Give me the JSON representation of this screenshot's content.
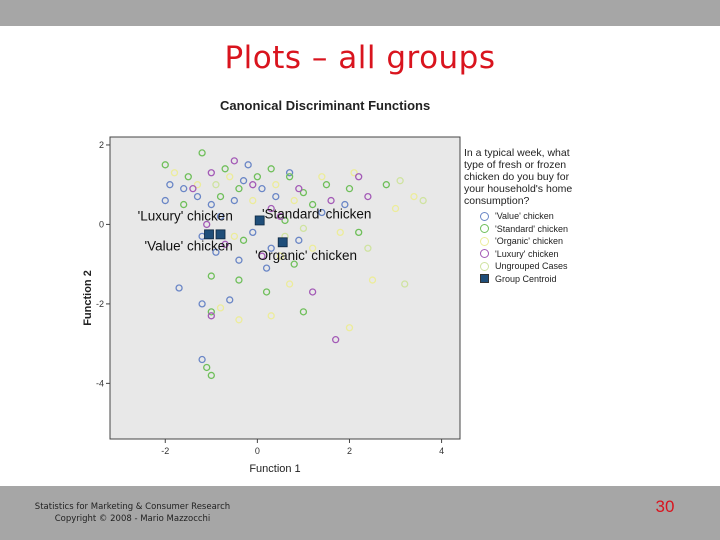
{
  "slide": {
    "title": "Plots – all groups",
    "footer_line1": "Statistics for Marketing & Consumer Research",
    "footer_line2": "Copyright © 2008 - Mario Mazzocchi",
    "page_number": "30"
  },
  "chart_data": {
    "type": "scatter",
    "title": "Canonical Discriminant Functions",
    "xlabel": "Function 1",
    "ylabel": "Function 2",
    "xlim": [
      -3.2,
      4.4
    ],
    "ylim": [
      -5.4,
      2.2
    ],
    "xticks": [
      -2,
      0,
      2,
      4
    ],
    "yticks": [
      2,
      0,
      -2,
      -4
    ],
    "grid": false,
    "legend_position": "right",
    "legend_title": "In a typical week, what\ntype of fresh or frozen\nchicken do you buy for\nyour household's home\nconsumption?",
    "colors": {
      "value": "#6a86c6",
      "standard": "#6fbf5a",
      "organic": "#ecec9a",
      "luxury": "#a35ab6",
      "centroid": "#1f4e79",
      "plot_bg": "#e8e8e8"
    },
    "series": [
      {
        "name": "'Value' chicken",
        "marker": "circle",
        "color": "#6a86c6",
        "points": [
          [
            -1.9,
            1.0
          ],
          [
            -1.6,
            0.9
          ],
          [
            -1.3,
            0.7
          ],
          [
            -1.0,
            0.5
          ],
          [
            -0.8,
            0.2
          ],
          [
            -0.5,
            0.6
          ],
          [
            -0.3,
            1.1
          ],
          [
            0.1,
            0.9
          ],
          [
            0.4,
            0.7
          ],
          [
            -1.2,
            -0.3
          ],
          [
            -0.9,
            -0.7
          ],
          [
            -0.4,
            -0.9
          ],
          [
            -0.1,
            -0.2
          ],
          [
            0.3,
            -0.6
          ],
          [
            0.9,
            -0.4
          ],
          [
            -1.7,
            -1.6
          ],
          [
            -1.2,
            -2.0
          ],
          [
            -0.6,
            -1.9
          ],
          [
            0.2,
            -1.1
          ],
          [
            -1.2,
            -3.4
          ],
          [
            1.4,
            0.3
          ],
          [
            0.7,
            1.3
          ],
          [
            1.9,
            0.5
          ],
          [
            -2.0,
            0.6
          ],
          [
            -0.2,
            1.5
          ]
        ]
      },
      {
        "name": "'Standard' chicken",
        "marker": "circle",
        "color": "#6fbf5a",
        "points": [
          [
            -2.0,
            1.5
          ],
          [
            -1.5,
            1.2
          ],
          [
            -1.2,
            1.8
          ],
          [
            -0.7,
            1.4
          ],
          [
            -0.4,
            0.9
          ],
          [
            0.0,
            1.2
          ],
          [
            0.3,
            1.4
          ],
          [
            0.7,
            1.2
          ],
          [
            1.0,
            0.8
          ],
          [
            1.5,
            1.0
          ],
          [
            2.0,
            0.9
          ],
          [
            2.8,
            1.0
          ],
          [
            -1.6,
            0.5
          ],
          [
            -0.8,
            0.7
          ],
          [
            0.6,
            0.1
          ],
          [
            1.2,
            0.5
          ],
          [
            -1.0,
            -1.3
          ],
          [
            -0.4,
            -1.4
          ],
          [
            0.8,
            -1.0
          ],
          [
            1.0,
            -2.2
          ],
          [
            -1.0,
            -2.2
          ],
          [
            -1.1,
            -3.6
          ],
          [
            -1.0,
            -3.8
          ],
          [
            2.2,
            -0.2
          ],
          [
            -0.3,
            -0.4
          ],
          [
            0.2,
            -1.7
          ]
        ]
      },
      {
        "name": "'Organic' chicken",
        "marker": "circle",
        "color": "#ecec9a",
        "points": [
          [
            -1.8,
            1.3
          ],
          [
            -1.3,
            1.0
          ],
          [
            -0.6,
            1.2
          ],
          [
            -0.1,
            0.6
          ],
          [
            0.4,
            1.0
          ],
          [
            0.8,
            0.6
          ],
          [
            1.4,
            1.2
          ],
          [
            2.1,
            1.3
          ],
          [
            3.4,
            0.7
          ],
          [
            3.0,
            0.4
          ],
          [
            -0.5,
            -0.3
          ],
          [
            0.5,
            -0.8
          ],
          [
            1.2,
            -0.6
          ],
          [
            2.5,
            -1.4
          ],
          [
            -0.8,
            -2.1
          ],
          [
            -0.4,
            -2.4
          ],
          [
            0.3,
            -2.3
          ],
          [
            0.7,
            -1.5
          ],
          [
            2.0,
            -2.6
          ],
          [
            1.8,
            -0.2
          ]
        ]
      },
      {
        "name": "'Luxury' chicken",
        "marker": "circle",
        "color": "#a35ab6",
        "points": [
          [
            -1.4,
            0.9
          ],
          [
            -1.0,
            1.3
          ],
          [
            -0.5,
            1.6
          ],
          [
            -0.1,
            1.0
          ],
          [
            0.3,
            0.4
          ],
          [
            0.9,
            0.9
          ],
          [
            1.6,
            0.6
          ],
          [
            2.2,
            1.2
          ],
          [
            -1.1,
            0.0
          ],
          [
            -0.7,
            -0.5
          ],
          [
            0.1,
            -0.8
          ],
          [
            1.2,
            -1.7
          ],
          [
            -1.0,
            -2.3
          ],
          [
            1.7,
            -2.9
          ],
          [
            0.5,
            0.2
          ],
          [
            2.4,
            0.7
          ]
        ]
      },
      {
        "name": "Ungrouped Cases",
        "marker": "circle",
        "color": "#cfe3a0",
        "points": [
          [
            3.1,
            1.1
          ],
          [
            3.6,
            0.6
          ],
          [
            1.0,
            -0.1
          ],
          [
            2.4,
            -0.6
          ],
          [
            3.2,
            -1.5
          ],
          [
            -0.9,
            1.0
          ],
          [
            0.6,
            -0.3
          ]
        ]
      },
      {
        "name": "Group Centroid",
        "marker": "square",
        "color": "#1f4e79",
        "points": [
          [
            -1.05,
            -0.25
          ],
          [
            -0.8,
            -0.25
          ],
          [
            0.05,
            0.1
          ],
          [
            0.55,
            -0.45
          ]
        ]
      }
    ],
    "annotations": [
      {
        "text": "'Luxury' chicken",
        "x": -2.6,
        "y": 0.1
      },
      {
        "text": "'Standard' chicken",
        "x": 0.1,
        "y": 0.15
      },
      {
        "text": "'Value' chicken",
        "x": -2.45,
        "y": -0.65
      },
      {
        "text": "'Organic' chicken",
        "x": -0.05,
        "y": -0.9
      }
    ]
  }
}
